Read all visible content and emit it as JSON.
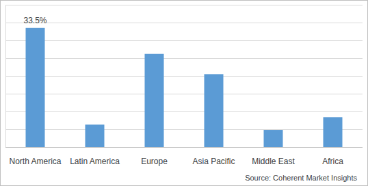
{
  "chart_data": {
    "type": "bar",
    "categories": [
      "North America",
      "Latin America",
      "Europe",
      "Asia Pacific",
      "Middle East",
      "Africa"
    ],
    "values": [
      33.5,
      6.3,
      26.2,
      20.5,
      4.8,
      8.4
    ],
    "value_labels": [
      "33.5%",
      null,
      null,
      null,
      null,
      null
    ],
    "data_labels": true,
    "color": "#5b9bd5",
    "ylim": [
      0,
      40
    ],
    "yticks": [
      0,
      5,
      10,
      15,
      20,
      25,
      30,
      35,
      40
    ],
    "grid": true,
    "tick_labels": "x",
    "source": "Source: Coherent Market Insights"
  }
}
